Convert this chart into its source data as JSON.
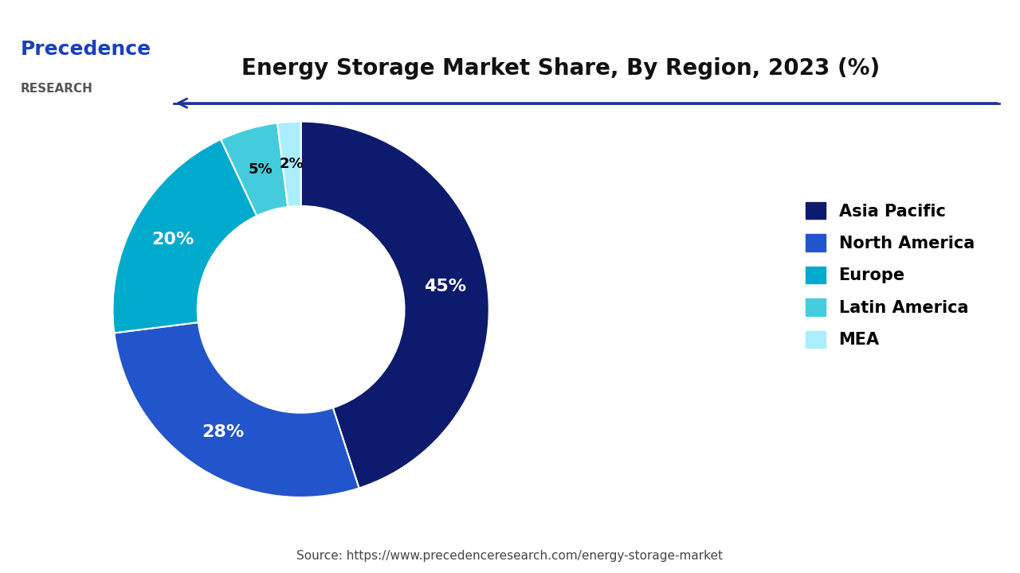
{
  "title": "Energy Storage Market Share, By Region, 2023 (%)",
  "segments": [
    {
      "label": "Asia Pacific",
      "value": 45,
      "color": "#0d1b6e",
      "text_color": "white"
    },
    {
      "label": "North America",
      "value": 28,
      "color": "#2255cc",
      "text_color": "white"
    },
    {
      "label": "Europe",
      "value": 20,
      "color": "#00aacc",
      "text_color": "white"
    },
    {
      "label": "Latin America",
      "value": 5,
      "color": "#44ccdd",
      "text_color": "black"
    },
    {
      "label": "MEA",
      "value": 2,
      "color": "#aaeeff",
      "text_color": "black"
    }
  ],
  "source_text": "Source: https://www.precedenceresearch.com/energy-storage-market",
  "logo_text1": "Precedence",
  "logo_text2": "RESEARCH",
  "start_angle": 90,
  "donut_width": 0.45,
  "background_color": "#ffffff",
  "title_fontsize": 20,
  "label_fontsize": 16,
  "legend_fontsize": 15,
  "source_fontsize": 11,
  "arrow_color": "#1a3399"
}
